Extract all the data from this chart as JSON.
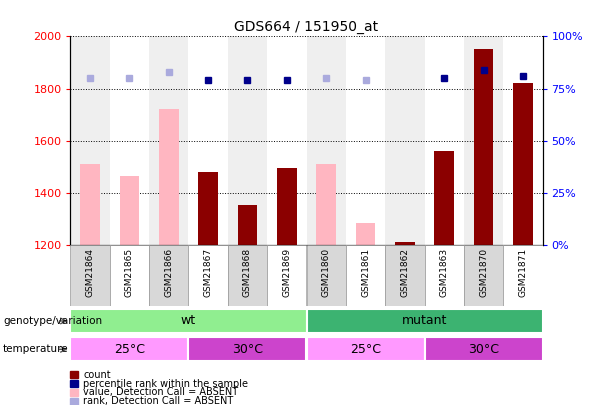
{
  "title": "GDS664 / 151950_at",
  "samples": [
    "GSM21864",
    "GSM21865",
    "GSM21866",
    "GSM21867",
    "GSM21868",
    "GSM21869",
    "GSM21860",
    "GSM21861",
    "GSM21862",
    "GSM21863",
    "GSM21870",
    "GSM21871"
  ],
  "count_values": [
    null,
    null,
    null,
    1480,
    1355,
    1495,
    null,
    null,
    1210,
    1560,
    1950,
    1820
  ],
  "absent_value_values": [
    1510,
    1465,
    1720,
    null,
    null,
    null,
    1510,
    1285,
    null,
    null,
    null,
    null
  ],
  "percentile_rank": [
    null,
    null,
    null,
    79,
    79,
    79,
    null,
    null,
    null,
    80,
    84,
    81
  ],
  "absent_rank_values": [
    80,
    80,
    83,
    null,
    null,
    null,
    80,
    79,
    null,
    null,
    null,
    null
  ],
  "ylim": [
    1200,
    2000
  ],
  "y2lim": [
    0,
    100
  ],
  "yticks": [
    1200,
    1400,
    1600,
    1800,
    2000
  ],
  "y2ticks": [
    0,
    25,
    50,
    75,
    100
  ],
  "genotype_colors": [
    "#90EE90",
    "#3CB371"
  ],
  "genotype_groups": [
    {
      "label": "wt",
      "start": 0,
      "end": 6,
      "color": "#90EE90"
    },
    {
      "label": "mutant",
      "start": 6,
      "end": 12,
      "color": "#3CB371"
    }
  ],
  "temperature_groups": [
    {
      "label": "25°C",
      "start": 0,
      "end": 3,
      "color": "#FF99FF"
    },
    {
      "label": "30°C",
      "start": 3,
      "end": 6,
      "color": "#CC44CC"
    },
    {
      "label": "25°C",
      "start": 6,
      "end": 9,
      "color": "#FF99FF"
    },
    {
      "label": "30°C",
      "start": 9,
      "end": 12,
      "color": "#CC44CC"
    }
  ],
  "bar_color_count": "#8B0000",
  "bar_color_absent_value": "#FFB6C1",
  "dot_color_percentile": "#00008B",
  "dot_color_absent_rank": "#AAAADD",
  "bar_width": 0.5,
  "legend_entries": [
    {
      "color": "#8B0000",
      "label": "count"
    },
    {
      "color": "#00008B",
      "label": "percentile rank within the sample"
    },
    {
      "color": "#FFB6C1",
      "label": "value, Detection Call = ABSENT"
    },
    {
      "color": "#AAAADD",
      "label": "rank, Detection Call = ABSENT"
    }
  ],
  "col_bg_odd": "#D8D8D8",
  "col_bg_even": "#FFFFFF"
}
